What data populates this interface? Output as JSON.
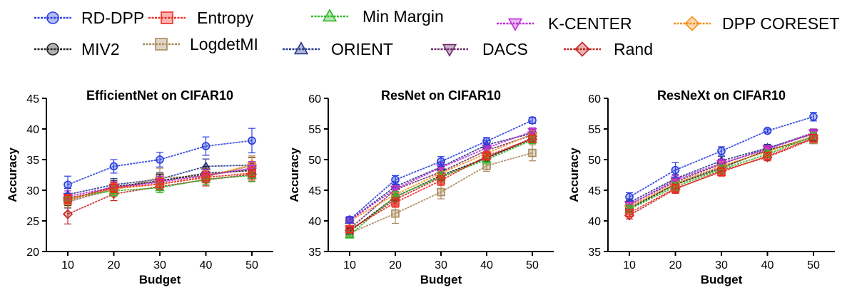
{
  "legend": [
    {
      "name": "RD-DPP",
      "color": "#2b3fe0",
      "marker": "circle"
    },
    {
      "name": "Entropy",
      "color": "#ee2a22",
      "marker": "square"
    },
    {
      "name": "Min Margin",
      "color": "#2fb92c",
      "marker": "triangle-up"
    },
    {
      "name": "K-CENTER",
      "color": "#bf2fd6",
      "marker": "triangle-down"
    },
    {
      "name": "DPP CORESET",
      "color": "#f5901e",
      "marker": "diamond"
    },
    {
      "name": "MIV2",
      "color": "#222222",
      "marker": "circle"
    },
    {
      "name": "LogdetMI",
      "color": "#a8895b",
      "marker": "square"
    },
    {
      "name": "ORIENT",
      "color": "#273a8c",
      "marker": "triangle-up"
    },
    {
      "name": "DACS",
      "color": "#6e2d6b",
      "marker": "triangle-down"
    },
    {
      "name": "Rand",
      "color": "#c02822",
      "marker": "diamond"
    }
  ],
  "chart_data": [
    {
      "type": "line",
      "title": "EfficientNet on CIFAR10",
      "xlabel": "Budget",
      "ylabel": "Accuracy",
      "x": [
        10,
        20,
        30,
        40,
        50
      ],
      "xticks": [
        "10",
        "20",
        "30",
        "40",
        "50"
      ],
      "ylim": [
        20,
        45
      ],
      "yticks": [
        "20",
        "25",
        "30",
        "35",
        "40",
        "45"
      ],
      "series": [
        {
          "name": "RD-DPP",
          "values": [
            30.9,
            33.9,
            35.0,
            37.2,
            38.1
          ],
          "err": [
            1.4,
            1.1,
            1.2,
            1.5,
            2.0
          ]
        },
        {
          "name": "Entropy",
          "values": [
            28.6,
            30.4,
            31.0,
            32.1,
            32.8
          ],
          "err": [
            0.8,
            0.8,
            0.9,
            0.9,
            1.0
          ]
        },
        {
          "name": "Min Margin",
          "values": [
            28.8,
            29.9,
            30.4,
            31.8,
            32.4
          ],
          "err": [
            0.7,
            0.8,
            0.8,
            0.9,
            1.0
          ]
        },
        {
          "name": "K-CENTER",
          "values": [
            29.0,
            30.5,
            31.3,
            32.4,
            33.6
          ],
          "err": [
            0.9,
            0.9,
            1.0,
            1.0,
            1.1
          ]
        },
        {
          "name": "DPP CORESET",
          "values": [
            28.5,
            30.2,
            31.0,
            32.2,
            34.2
          ],
          "err": [
            0.9,
            0.9,
            1.0,
            1.0,
            1.2
          ]
        },
        {
          "name": "MIV2",
          "values": [
            28.4,
            30.6,
            31.5,
            32.8,
            33.2
          ],
          "err": [
            0.9,
            1.0,
            1.1,
            1.1,
            1.2
          ]
        },
        {
          "name": "LogdetMI",
          "values": [
            28.2,
            30.1,
            32.1,
            32.2,
            34.0
          ],
          "err": [
            1.0,
            1.1,
            1.5,
            1.3,
            1.6
          ]
        },
        {
          "name": "ORIENT",
          "values": [
            29.3,
            30.9,
            31.8,
            33.9,
            34.1
          ],
          "err": [
            1.0,
            1.0,
            1.1,
            1.2,
            1.2
          ]
        },
        {
          "name": "DACS",
          "values": [
            28.1,
            30.3,
            31.6,
            32.5,
            33.4
          ],
          "err": [
            1.0,
            1.0,
            1.1,
            1.1,
            1.2
          ]
        },
        {
          "name": "Rand",
          "values": [
            26.1,
            29.4,
            30.6,
            31.7,
            32.6
          ],
          "err": [
            1.6,
            1.1,
            1.0,
            1.0,
            1.1
          ]
        }
      ]
    },
    {
      "type": "line",
      "title": "ResNet on CIFAR10",
      "xlabel": "Budget",
      "ylabel": "Accuracy",
      "x": [
        10,
        20,
        30,
        40,
        50
      ],
      "xticks": [
        "10",
        "20",
        "30",
        "40",
        "50"
      ],
      "ylim": [
        35,
        60
      ],
      "yticks": [
        "35",
        "40",
        "45",
        "50",
        "55",
        "60"
      ],
      "series": [
        {
          "name": "RD-DPP",
          "values": [
            40.2,
            46.7,
            49.7,
            53.0,
            56.4
          ],
          "err": [
            0.5,
            0.7,
            0.8,
            0.6,
            0.5
          ]
        },
        {
          "name": "Entropy",
          "values": [
            38.6,
            43.0,
            46.6,
            50.6,
            53.4
          ],
          "err": [
            0.5,
            0.8,
            0.8,
            0.7,
            0.6
          ]
        },
        {
          "name": "Min Margin",
          "values": [
            37.7,
            44.0,
            47.2,
            50.0,
            53.2
          ],
          "err": [
            0.5,
            0.8,
            0.8,
            0.7,
            0.6
          ]
        },
        {
          "name": "K-CENTER",
          "values": [
            40.1,
            45.2,
            48.7,
            51.9,
            54.6
          ],
          "err": [
            0.5,
            0.8,
            0.8,
            0.7,
            0.6
          ]
        },
        {
          "name": "DPP CORESET",
          "values": [
            40.0,
            44.3,
            47.8,
            51.0,
            54.2
          ],
          "err": [
            0.5,
            0.8,
            0.8,
            0.7,
            0.6
          ]
        },
        {
          "name": "MIV2",
          "values": [
            38.3,
            43.9,
            47.4,
            50.3,
            53.5
          ],
          "err": [
            0.5,
            0.8,
            0.8,
            0.7,
            0.6
          ]
        },
        {
          "name": "LogdetMI",
          "values": [
            38.0,
            41.2,
            44.7,
            49.0,
            51.1
          ],
          "err": [
            0.6,
            1.6,
            1.1,
            0.9,
            1.3
          ]
        },
        {
          "name": "ORIENT",
          "values": [
            40.1,
            45.6,
            48.8,
            52.4,
            54.3
          ],
          "err": [
            0.5,
            0.8,
            0.8,
            0.7,
            0.6
          ]
        },
        {
          "name": "DACS",
          "values": [
            38.7,
            45.1,
            48.0,
            51.5,
            54.0
          ],
          "err": [
            0.5,
            0.8,
            0.8,
            0.7,
            0.6
          ]
        },
        {
          "name": "Rand",
          "values": [
            38.4,
            43.5,
            47.1,
            50.3,
            53.3
          ],
          "err": [
            0.5,
            0.8,
            0.8,
            0.7,
            0.6
          ]
        }
      ]
    },
    {
      "type": "line",
      "title": "ResNeXt on CIFAR10",
      "xlabel": "Budget",
      "ylabel": "Accuracy",
      "x": [
        10,
        20,
        30,
        40,
        50
      ],
      "xticks": [
        "10",
        "20",
        "30",
        "40",
        "50"
      ],
      "ylim": [
        35,
        60
      ],
      "yticks": [
        "35",
        "40",
        "45",
        "50",
        "55",
        "60"
      ],
      "series": [
        {
          "name": "RD-DPP",
          "values": [
            43.9,
            48.3,
            51.4,
            54.7,
            57.0
          ],
          "err": [
            0.7,
            1.2,
            0.7,
            0.3,
            0.7
          ]
        },
        {
          "name": "Entropy",
          "values": [
            41.3,
            45.3,
            48.0,
            50.6,
            53.5
          ],
          "err": [
            0.6,
            0.7,
            0.7,
            0.6,
            0.6
          ]
        },
        {
          "name": "Min Margin",
          "values": [
            41.9,
            45.6,
            48.4,
            50.9,
            53.8
          ],
          "err": [
            0.6,
            0.7,
            0.7,
            0.6,
            0.6
          ]
        },
        {
          "name": "K-CENTER",
          "values": [
            42.6,
            46.7,
            49.4,
            51.7,
            54.3
          ],
          "err": [
            0.6,
            0.7,
            0.7,
            0.6,
            0.6
          ]
        },
        {
          "name": "DPP CORESET",
          "values": [
            42.4,
            46.1,
            49.0,
            51.3,
            53.9
          ],
          "err": [
            0.6,
            0.7,
            0.7,
            0.6,
            0.6
          ]
        },
        {
          "name": "MIV2",
          "values": [
            42.0,
            46.0,
            48.7,
            51.5,
            53.6
          ],
          "err": [
            0.6,
            0.7,
            0.7,
            0.6,
            0.6
          ]
        },
        {
          "name": "LogdetMI",
          "values": [
            42.2,
            45.9,
            48.6,
            51.6,
            53.2
          ],
          "err": [
            0.6,
            0.7,
            0.7,
            0.6,
            0.6
          ]
        },
        {
          "name": "ORIENT",
          "values": [
            43.0,
            46.9,
            49.8,
            51.9,
            54.2
          ],
          "err": [
            0.6,
            0.7,
            0.7,
            0.6,
            0.6
          ]
        },
        {
          "name": "DACS",
          "values": [
            42.7,
            46.4,
            49.3,
            51.8,
            54.4
          ],
          "err": [
            0.6,
            0.7,
            0.7,
            0.6,
            0.6
          ]
        },
        {
          "name": "Rand",
          "values": [
            40.9,
            45.2,
            48.2,
            50.4,
            53.4
          ],
          "err": [
            0.6,
            0.7,
            0.7,
            0.6,
            0.6
          ]
        }
      ]
    }
  ]
}
